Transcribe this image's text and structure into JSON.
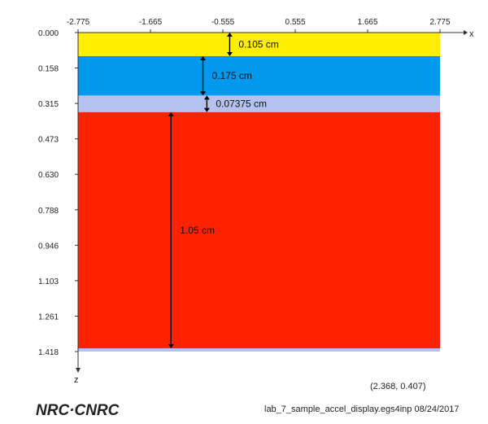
{
  "axes": {
    "x_name": "x",
    "z_name": "z",
    "x_ticks": [
      "-2.775",
      "-1.665",
      "-0.555",
      "0.555",
      "1.665",
      "2.775"
    ],
    "z_ticks": [
      "0.000",
      "0.158",
      "0.315",
      "0.473",
      "0.630",
      "0.788",
      "0.946",
      "1.103",
      "1.261",
      "1.418"
    ],
    "x_range": [
      -2.775,
      2.775
    ],
    "z_range": [
      0,
      1.418
    ]
  },
  "layers": [
    {
      "z_top": 0.0,
      "z_bottom": 0.105,
      "color": "#ffee00"
    },
    {
      "z_top": 0.105,
      "z_bottom": 0.28,
      "color": "#0099ee"
    },
    {
      "z_top": 0.28,
      "z_bottom": 0.35375,
      "color": "#b6c2ee"
    },
    {
      "z_top": 0.35375,
      "z_bottom": 1.40375,
      "color": "#ff2200"
    },
    {
      "z_top": 1.40375,
      "z_bottom": 1.418,
      "color": "#b6c2ee"
    }
  ],
  "dimensions": [
    {
      "label": "0.105 cm",
      "x": -0.45,
      "z_from": 0.0,
      "z_to": 0.105
    },
    {
      "label": "0.175 cm",
      "x": -0.86,
      "z_from": 0.105,
      "z_to": 0.28
    },
    {
      "label": "0.07375 cm",
      "x": -0.8,
      "z_from": 0.28,
      "z_to": 0.35375
    },
    {
      "label": "1.05 cm",
      "x": -1.35,
      "z_from": 0.35375,
      "z_to": 1.40375
    }
  ],
  "cursor_readout": "(2.368,  0.407)",
  "footer": {
    "filename_date": "lab_7_sample_accel_display.egs4inp  08/24/2017",
    "logo": "NRC·CNRC"
  }
}
